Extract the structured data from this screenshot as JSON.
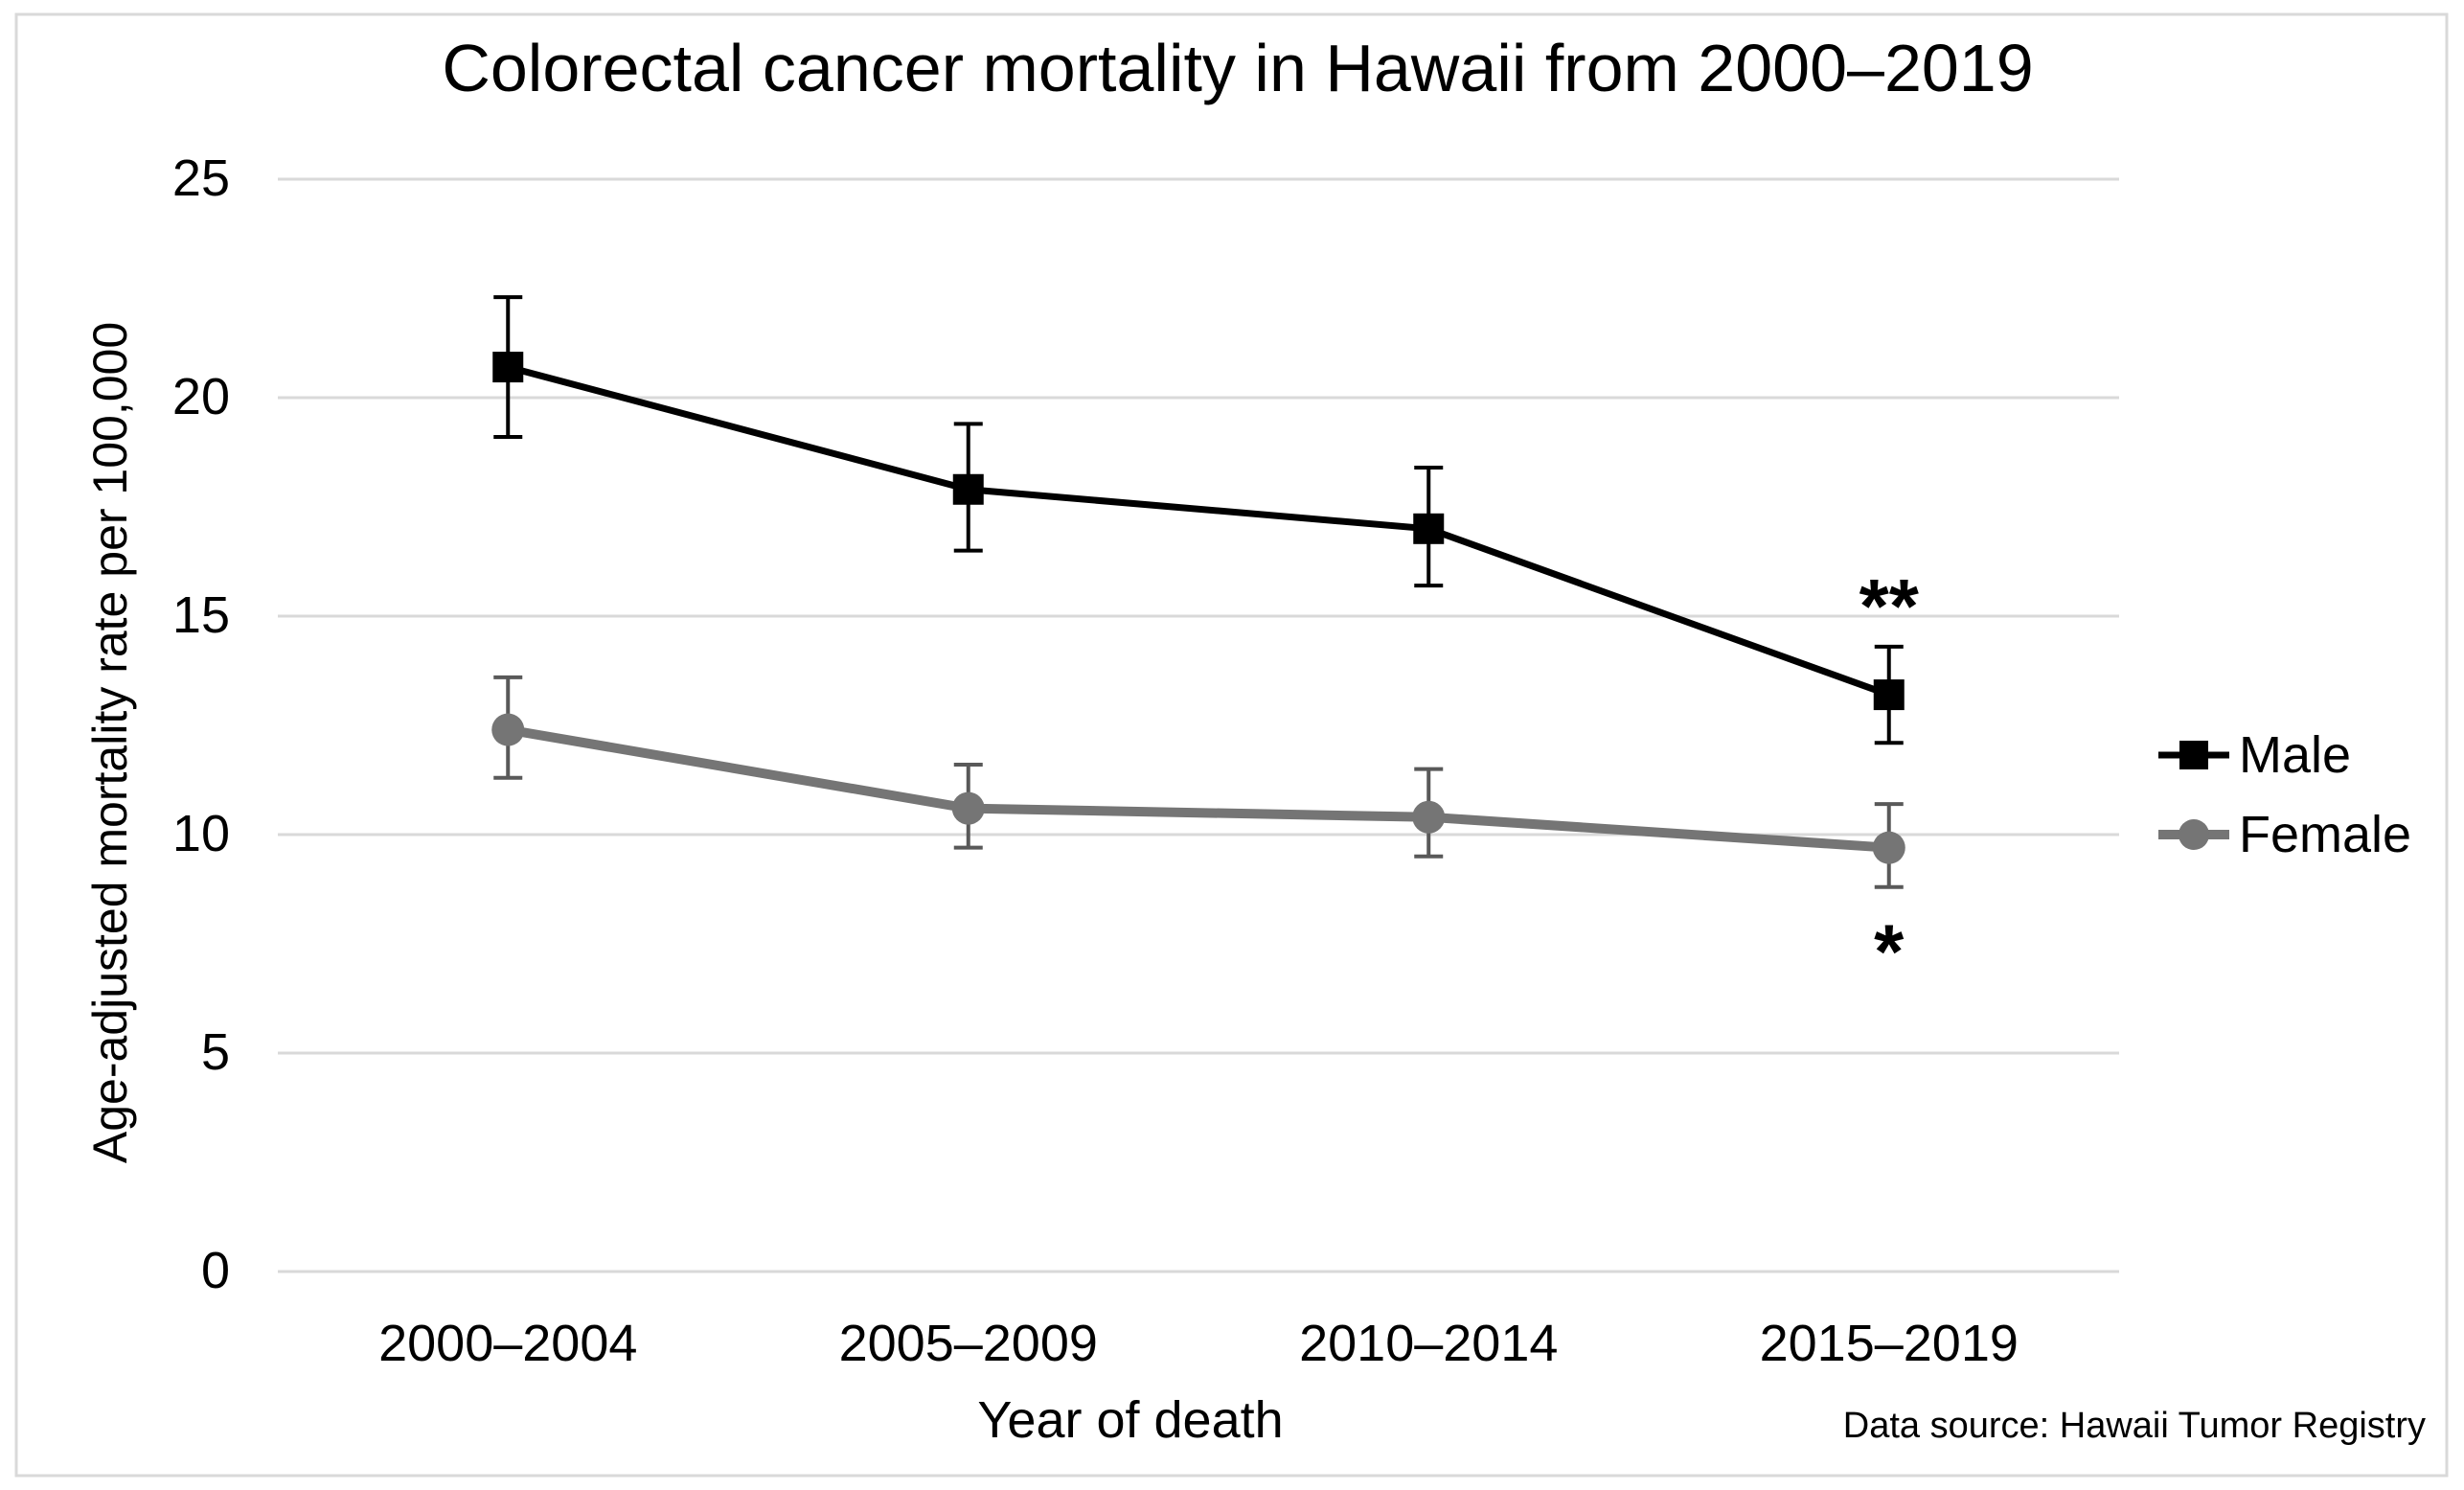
{
  "page": {
    "background": "#ffffff",
    "border_color": "#d9d9d9"
  },
  "chart_data": {
    "type": "line",
    "title": "Colorectal cancer mortality in Hawaii from 2000–2019",
    "xlabel": "Year of death",
    "ylabel": "Age-adjusted mortality rate per 100,000",
    "source_note": "Data source: Hawaii Tumor Registry",
    "categories": [
      "2000–2004",
      "2005–2009",
      "2010–2014",
      "2015–2019"
    ],
    "y_axis": {
      "min": 0,
      "max": 25,
      "tick_step": 5,
      "ticks": [
        0,
        5,
        10,
        15,
        20,
        25
      ]
    },
    "grid": true,
    "gridline_color": "#d9d9d9",
    "legend_position": "right",
    "series": [
      {
        "name": "Male",
        "color": "#000000",
        "marker": "square",
        "error_bar_color": "#000000",
        "values": [
          20.7,
          17.9,
          17.0,
          13.2
        ],
        "ci_low": [
          19.1,
          16.5,
          15.7,
          12.1
        ],
        "ci_high": [
          22.3,
          19.4,
          18.4,
          14.3
        ]
      },
      {
        "name": "Female",
        "color": "#757575",
        "marker": "circle",
        "error_bar_color": "#595959",
        "values": [
          12.4,
          10.6,
          10.4,
          9.7
        ],
        "ci_low": [
          11.3,
          9.7,
          9.5,
          8.8
        ],
        "ci_high": [
          13.6,
          11.6,
          11.5,
          10.7
        ]
      }
    ],
    "annotations": [
      {
        "text": "**",
        "series": "Male",
        "category_index": 3,
        "position": "above",
        "color": "#000000"
      },
      {
        "text": "*",
        "series": "Female",
        "category_index": 3,
        "position": "below",
        "color": "#757575"
      }
    ]
  }
}
